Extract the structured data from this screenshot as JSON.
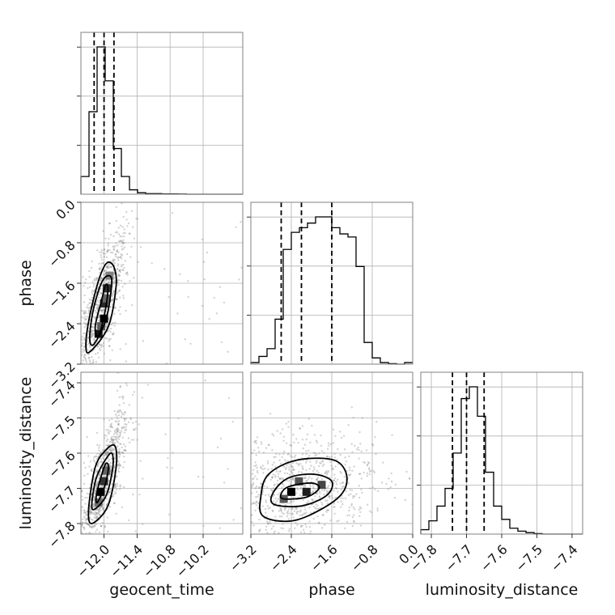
{
  "chart_data": {
    "type": "corner",
    "grid": true,
    "colors": {
      "hist": "#000000",
      "points": "#808080",
      "grid": "#b0b0b0",
      "frame": "#808080"
    },
    "parameters": [
      {
        "key": "geocent_time",
        "label": "geocent_time",
        "range": [
          -12.42,
          -9.48
        ],
        "ticks": [
          -12.0,
          -11.4,
          -10.8,
          -10.2
        ],
        "tick_labels": [
          "−12.0",
          "−11.4",
          "−10.8",
          "−10.2"
        ],
        "quantiles": [
          -12.18,
          -12.0,
          -11.82
        ],
        "hist": {
          "start": -12.42,
          "bin_width": 0.147,
          "counts": [
            0.12,
            0.56,
            1.0,
            0.77,
            0.31,
            0.12,
            0.03,
            0.01,
            0.004,
            0.004,
            0.002,
            0.002,
            0.001,
            0,
            0,
            0,
            0,
            0,
            0,
            0
          ]
        }
      },
      {
        "key": "phase",
        "label": "phase",
        "range": [
          -3.2,
          0.0
        ],
        "ticks": [
          -3.2,
          -2.4,
          -1.6,
          -0.8,
          0.0
        ],
        "tick_labels": [
          "−3.2",
          "−2.4",
          "−1.6",
          "−0.8",
          "0.0"
        ],
        "quantiles": [
          -2.6,
          -2.2,
          -1.6
        ],
        "hist": {
          "start": -3.2,
          "bin_width": 0.16,
          "counts": [
            0.01,
            0.05,
            0.1,
            0.29,
            0.74,
            0.85,
            0.88,
            0.91,
            0.95,
            0.95,
            0.88,
            0.84,
            0.82,
            0.63,
            0.14,
            0.04,
            0.01,
            0.003,
            0,
            0.01
          ]
        }
      },
      {
        "key": "luminosity_distance",
        "label": "luminosity_distance",
        "range": [
          -7.83,
          -7.37
        ],
        "ticks": [
          -7.8,
          -7.7,
          -7.6,
          -7.5,
          -7.4
        ],
        "tick_labels": [
          "−7.8",
          "−7.7",
          "−7.6",
          "−7.5",
          "−7.4"
        ],
        "quantiles": [
          -7.74,
          -7.7,
          -7.65
        ],
        "hist": {
          "start": -7.83,
          "bin_width": 0.023,
          "counts": [
            0.03,
            0.09,
            0.19,
            0.31,
            0.55,
            0.92,
            1.0,
            0.8,
            0.42,
            0.19,
            0.1,
            0.04,
            0.02,
            0.01,
            0.003,
            0,
            0,
            0,
            0,
            0
          ]
        }
      }
    ],
    "pairs": [
      {
        "x": "geocent_time",
        "y": "phase",
        "density_cells": [
          {
            "x": -12.1,
            "y": -2.6,
            "level": 0.9
          },
          {
            "x": -12.0,
            "y": -2.3,
            "level": 1.0
          },
          {
            "x": -12.0,
            "y": -2.0,
            "level": 0.8
          },
          {
            "x": -11.95,
            "y": -1.7,
            "level": 0.75
          },
          {
            "x": -12.05,
            "y": -2.45,
            "level": 0.55
          },
          {
            "x": -11.95,
            "y": -1.9,
            "level": 0.5
          },
          {
            "x": -11.9,
            "y": -1.45,
            "level": 0.35
          }
        ],
        "contours": [
          [
            [
              -12.1,
              -2.65
            ],
            [
              -11.98,
              -2.15
            ],
            [
              -11.93,
              -1.72
            ],
            [
              -11.97,
              -1.63
            ],
            [
              -12.04,
              -1.92
            ],
            [
              -12.16,
              -2.45
            ]
          ],
          [
            [
              -12.18,
              -2.8
            ],
            [
              -11.96,
              -2.3
            ],
            [
              -11.86,
              -1.6
            ],
            [
              -11.92,
              -1.45
            ],
            [
              -12.05,
              -1.6
            ],
            [
              -12.2,
              -2.15
            ],
            [
              -12.26,
              -2.7
            ]
          ],
          [
            [
              -12.25,
              -2.95
            ],
            [
              -11.92,
              -2.45
            ],
            [
              -11.78,
              -1.65
            ],
            [
              -11.82,
              -1.28
            ],
            [
              -11.95,
              -1.2
            ],
            [
              -12.1,
              -1.55
            ],
            [
              -12.27,
              -2.3
            ],
            [
              -12.33,
              -2.85
            ]
          ]
        ]
      },
      {
        "x": "geocent_time",
        "y": "luminosity_distance",
        "density_cells": [
          {
            "x": -12.06,
            "y": -7.71,
            "level": 1.0
          },
          {
            "x": -12.0,
            "y": -7.68,
            "level": 0.75
          },
          {
            "x": -11.96,
            "y": -7.65,
            "level": 0.5
          },
          {
            "x": -12.1,
            "y": -7.74,
            "level": 0.45
          }
        ],
        "contours": [
          [
            [
              -12.12,
              -7.74
            ],
            [
              -11.98,
              -7.69
            ],
            [
              -11.92,
              -7.64
            ],
            [
              -11.97,
              -7.63
            ],
            [
              -12.06,
              -7.67
            ],
            [
              -12.14,
              -7.72
            ]
          ],
          [
            [
              -12.18,
              -7.76
            ],
            [
              -11.96,
              -7.72
            ],
            [
              -11.84,
              -7.64
            ],
            [
              -11.86,
              -7.6
            ],
            [
              -11.98,
              -7.62
            ],
            [
              -12.14,
              -7.67
            ],
            [
              -12.22,
              -7.74
            ]
          ],
          [
            [
              -12.22,
              -7.8
            ],
            [
              -11.93,
              -7.75
            ],
            [
              -11.78,
              -7.64
            ],
            [
              -11.8,
              -7.58
            ],
            [
              -11.96,
              -7.59
            ],
            [
              -12.16,
              -7.64
            ],
            [
              -12.28,
              -7.76
            ]
          ]
        ]
      },
      {
        "x": "phase",
        "y": "luminosity_distance",
        "density_cells": [
          {
            "x": -2.4,
            "y": -7.71,
            "level": 1.0
          },
          {
            "x": -2.1,
            "y": -7.71,
            "level": 0.85
          },
          {
            "x": -1.8,
            "y": -7.69,
            "level": 0.65
          },
          {
            "x": -2.55,
            "y": -7.73,
            "level": 0.55
          },
          {
            "x": -2.25,
            "y": -7.68,
            "level": 0.6
          }
        ],
        "contours": [
          [
            [
              -2.55,
              -7.73
            ],
            [
              -2.1,
              -7.725
            ],
            [
              -1.85,
              -7.7
            ],
            [
              -2.0,
              -7.685
            ],
            [
              -2.45,
              -7.695
            ],
            [
              -2.6,
              -7.715
            ]
          ],
          [
            [
              -2.75,
              -7.745
            ],
            [
              -2.2,
              -7.75
            ],
            [
              -1.7,
              -7.72
            ],
            [
              -1.6,
              -7.68
            ],
            [
              -1.95,
              -7.66
            ],
            [
              -2.45,
              -7.67
            ],
            [
              -2.75,
              -7.71
            ]
          ],
          [
            [
              -2.95,
              -7.78
            ],
            [
              -2.3,
              -7.79
            ],
            [
              -1.5,
              -7.73
            ],
            [
              -1.3,
              -7.67
            ],
            [
              -1.55,
              -7.62
            ],
            [
              -2.3,
              -7.62
            ],
            [
              -2.85,
              -7.66
            ],
            [
              -3.0,
              -7.72
            ]
          ]
        ]
      }
    ]
  }
}
